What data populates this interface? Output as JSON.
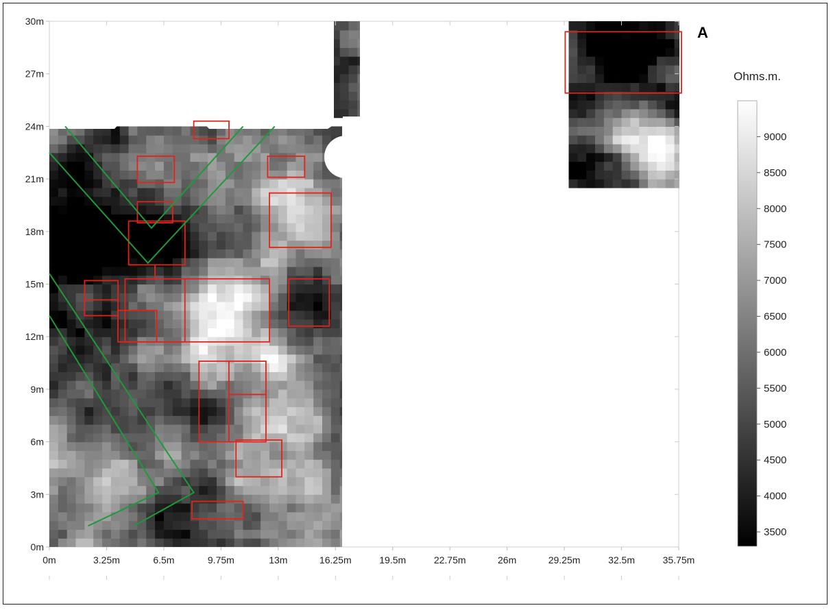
{
  "chart_data": {
    "type": "heatmap",
    "title": "",
    "panel_label": "A",
    "xlabel": "",
    "ylabel": "",
    "xlim": [
      0,
      35.75
    ],
    "ylim": [
      0,
      30
    ],
    "x_ticks": [
      "0m",
      "3.25m",
      "6.5m",
      "9.75m",
      "13m",
      "16.25m",
      "19.5m",
      "22.75m",
      "26m",
      "29.25m",
      "32.5m",
      "35.75m"
    ],
    "x_tick_values": [
      0,
      3.25,
      6.5,
      9.75,
      13,
      16.25,
      19.5,
      22.75,
      26,
      29.25,
      32.5,
      35.75
    ],
    "y_ticks": [
      "0m",
      "3m",
      "6m",
      "9m",
      "12m",
      "15m",
      "18m",
      "21m",
      "24m",
      "27m",
      "30m"
    ],
    "y_tick_values": [
      0,
      3,
      6,
      9,
      12,
      15,
      18,
      21,
      24,
      27,
      30
    ],
    "colorbar": {
      "label": "Ohms.m.",
      "min": 3300,
      "max": 9500,
      "ticks": [
        3500,
        4000,
        4500,
        5000,
        5500,
        6000,
        6500,
        7000,
        7500,
        8000,
        8500,
        9000
      ],
      "colormap": "grayscale (black = low, white = high)"
    },
    "grid": false,
    "survey_areas": [
      {
        "name": "main-grid",
        "x": [
          0,
          16.7
        ],
        "y": [
          0,
          24
        ]
      },
      {
        "name": "strip",
        "x": [
          16.2,
          17.8
        ],
        "y": [
          24.9,
          30
        ]
      },
      {
        "name": "upper-right-grid",
        "x": [
          29.5,
          35.9
        ],
        "y": [
          20.6,
          30
        ]
      }
    ],
    "annotations": {
      "red_rectangles": [
        {
          "x": [
            8.2,
            10.2
          ],
          "y": [
            23.3,
            24.3
          ]
        },
        {
          "x": [
            5.0,
            7.1
          ],
          "y": [
            20.8,
            22.3
          ]
        },
        {
          "x": [
            12.4,
            14.5
          ],
          "y": [
            21.1,
            22.3
          ]
        },
        {
          "x": [
            5.0,
            7.0
          ],
          "y": [
            18.5,
            19.7
          ]
        },
        {
          "x": [
            4.5,
            7.7
          ],
          "y": [
            16.1,
            18.6
          ]
        },
        {
          "x": [
            4.3,
            12.5
          ],
          "y": [
            11.7,
            15.3
          ]
        },
        {
          "x": [
            13.6,
            15.9
          ],
          "y": [
            12.6,
            15.3
          ]
        },
        {
          "x": [
            2.0,
            3.9
          ],
          "y": [
            13.2,
            15.2
          ]
        },
        {
          "x": [
            3.9,
            6.1
          ],
          "y": [
            11.7,
            13.5
          ]
        },
        {
          "x": [
            8.5,
            12.3
          ],
          "y": [
            6.0,
            10.6
          ]
        },
        {
          "x": [
            10.6,
            13.2
          ],
          "y": [
            4.0,
            6.1
          ]
        },
        {
          "x": [
            8.1,
            11.0
          ],
          "y": [
            1.6,
            2.6
          ]
        },
        {
          "x": [
            12.5,
            16.0
          ],
          "y": [
            17.1,
            20.2
          ]
        },
        {
          "x": [
            29.3,
            35.9
          ],
          "y": [
            25.9,
            29.4
          ]
        }
      ],
      "green_lines": [
        {
          "x": [
            0.9,
            5.8,
            11.0
          ],
          "y": [
            24.0,
            18.2,
            24.0
          ]
        },
        {
          "x": [
            0.0,
            5.6,
            12.8
          ],
          "y": [
            22.5,
            16.2,
            24.0
          ]
        },
        {
          "x": [
            0.0,
            6.2,
            2.2
          ],
          "y": [
            13.2,
            3.1,
            1.2
          ]
        },
        {
          "x": [
            0.0,
            8.2,
            4.8
          ],
          "y": [
            15.6,
            3.1,
            1.2
          ]
        }
      ]
    }
  }
}
